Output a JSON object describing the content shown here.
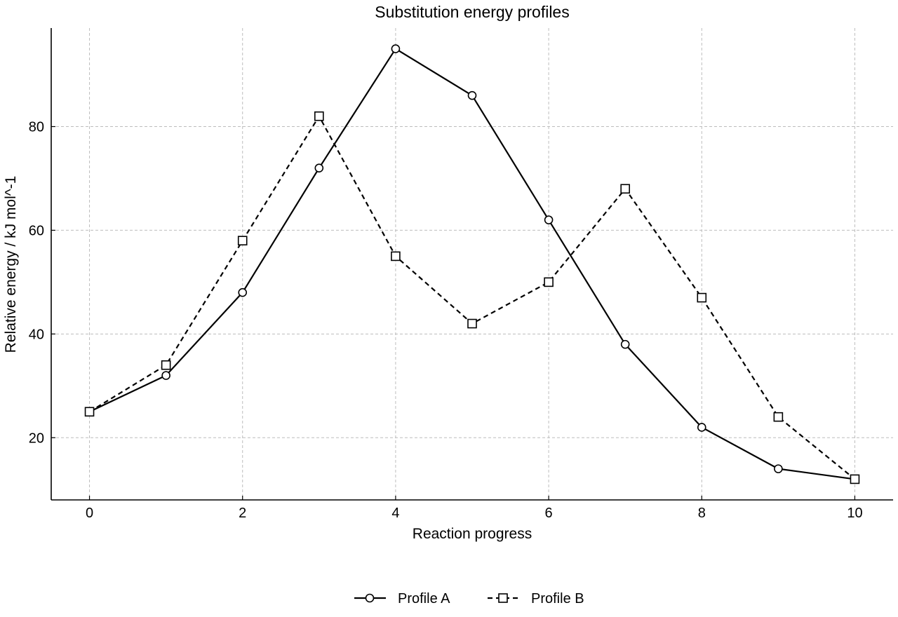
{
  "chart_data": {
    "type": "line",
    "title": "Substitution energy profiles",
    "xlabel": "Reaction progress",
    "ylabel": "Relative energy / kJ mol^-1",
    "x": [
      0,
      1,
      2,
      3,
      4,
      5,
      6,
      7,
      8,
      9,
      10
    ],
    "xlim": [
      -0.5,
      10.5
    ],
    "ylim": [
      8,
      99
    ],
    "xticks": [
      0,
      2,
      4,
      6,
      8,
      10
    ],
    "yticks": [
      20,
      40,
      60,
      80
    ],
    "xtick_labels": [
      "0",
      "2",
      "4",
      "6",
      "8",
      "10"
    ],
    "ytick_labels": [
      "20",
      "40",
      "60",
      "80"
    ],
    "grid": true,
    "legend_position": "bottom-center",
    "series": [
      {
        "name": "Profile A",
        "values": [
          25,
          32,
          48,
          72,
          95,
          86,
          62,
          38,
          22,
          14,
          12
        ],
        "color": "#000000",
        "line_style": "solid",
        "marker": "circle"
      },
      {
        "name": "Profile B",
        "values": [
          25,
          34,
          58,
          82,
          55,
          42,
          50,
          68,
          47,
          24,
          12
        ],
        "color": "#000000",
        "line_style": "dashed",
        "marker": "square"
      }
    ]
  }
}
